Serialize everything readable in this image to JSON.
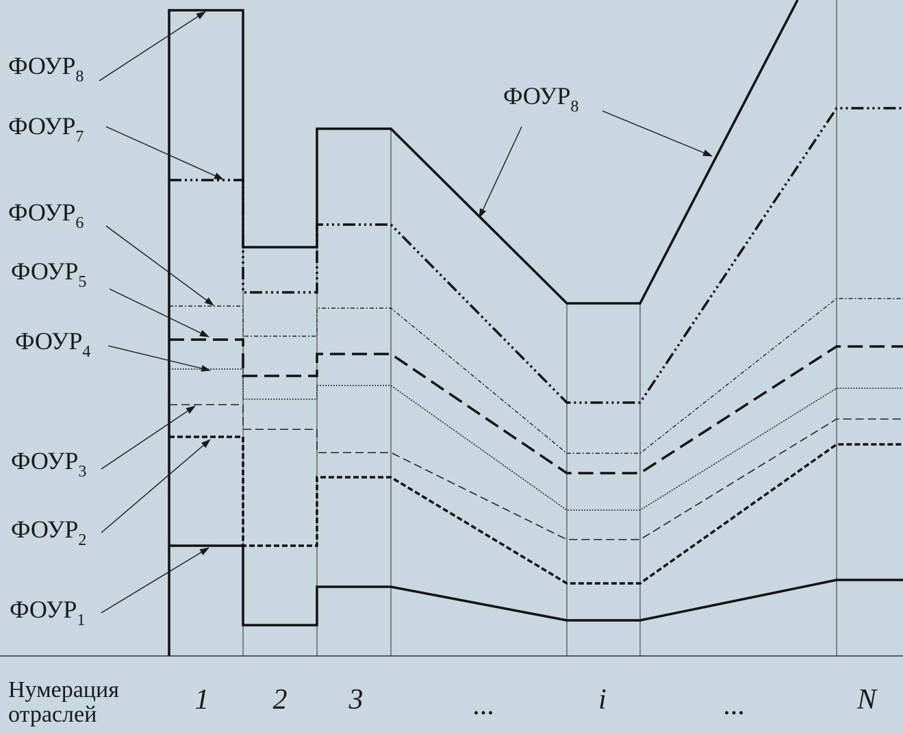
{
  "x_axis": {
    "title_line1": "Нумерация",
    "title_line2": "отраслей",
    "ticks": [
      "1",
      "2",
      "3",
      "...",
      "i",
      "...",
      "N"
    ]
  },
  "series_labels": {
    "f8_left": "ФОУР",
    "f8_left_sub": "8",
    "f7": "ФОУР",
    "f7_sub": "7",
    "f6": "ФОУР",
    "f6_sub": "6",
    "f5": "ФОУР",
    "f5_sub": "5",
    "f4": "ФОУР",
    "f4_sub": "4",
    "f3": "ФОУР",
    "f3_sub": "3",
    "f2": "ФОУР",
    "f2_sub": "2",
    "f1": "ФОУР",
    "f1_sub": "1",
    "f8_right": "ФОУР",
    "f8_right_sub": "8"
  },
  "colors": {
    "background": "#c9d7e0",
    "ink": "#1a1a1a",
    "grid": "#555555"
  }
}
